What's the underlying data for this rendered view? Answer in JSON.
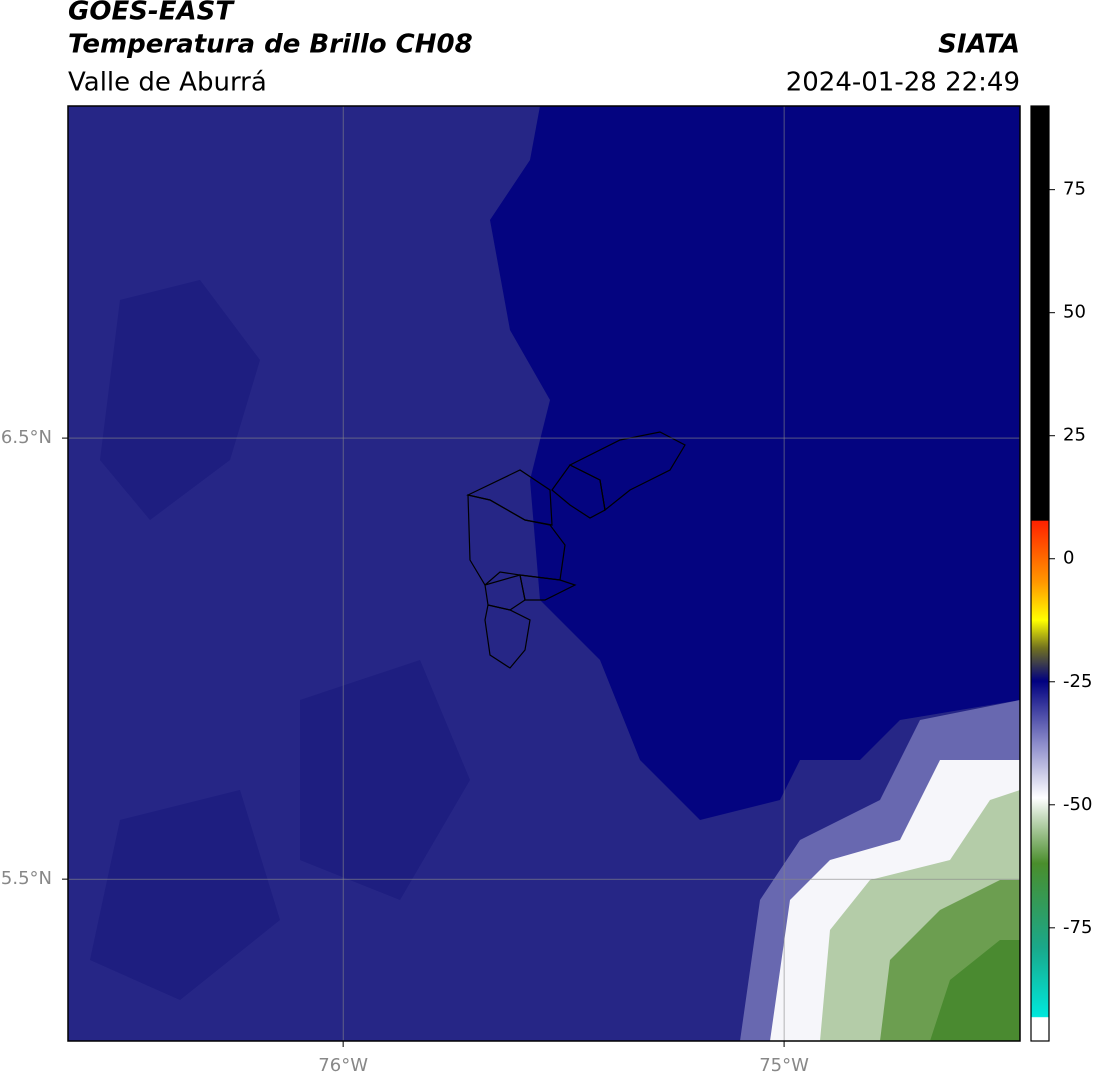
{
  "header": {
    "title": "GOES-EAST",
    "subtitle": "Temperatura de Brillo CH08",
    "region": "Valle de Aburrá",
    "source": "SIATA",
    "timestamp": "2024-01-28 22:49"
  },
  "chart_data": {
    "type": "map",
    "xlim": [
      -76.624,
      -74.465
    ],
    "ylim": [
      5.133,
      7.253
    ],
    "xticks": [
      {
        "value": -76,
        "label": "76°W"
      },
      {
        "value": -75,
        "label": "75°W"
      }
    ],
    "yticks": [
      {
        "value": 5.5,
        "label": "5.5°N"
      },
      {
        "value": 6.5,
        "label": "6.5°N"
      }
    ],
    "grid": true,
    "colorbar": {
      "lim": [
        -98,
        92
      ],
      "ticks": [
        -75,
        -50,
        -25,
        0,
        25,
        50,
        75
      ]
    }
  }
}
